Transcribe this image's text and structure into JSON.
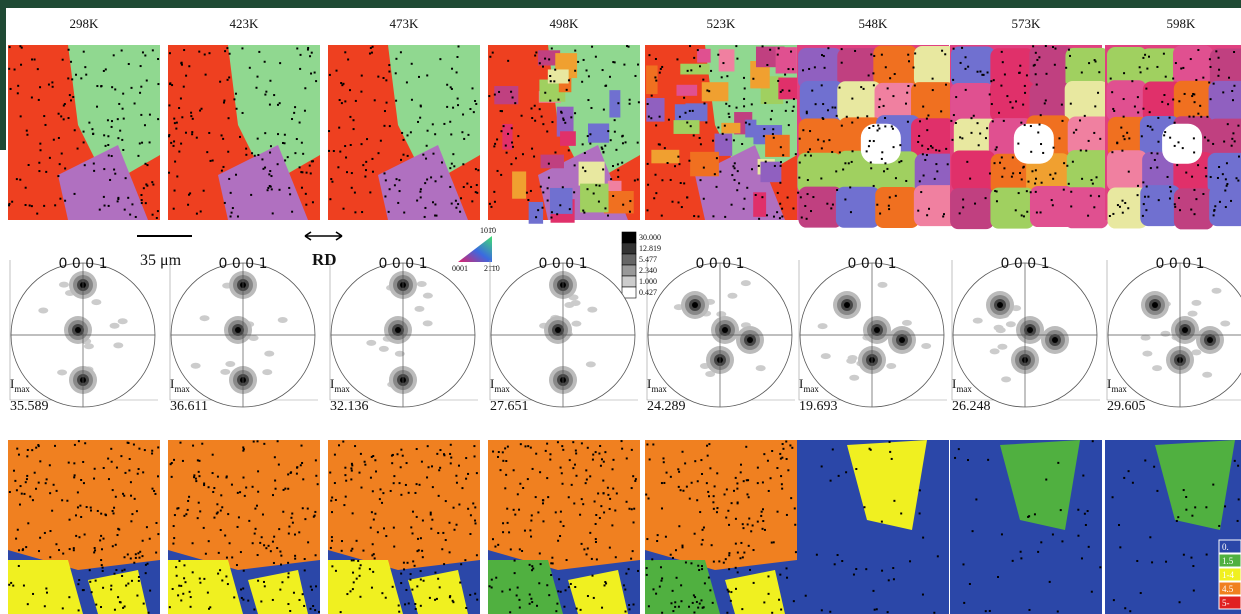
{
  "figure": {
    "temperatures": [
      "298K",
      "423K",
      "473K",
      "498K",
      "523K",
      "548K",
      "573K",
      "598K"
    ],
    "scale_bar": "35 μm",
    "direction": "RD",
    "ipf_key": {
      "top": "101̄0",
      "left": "0001",
      "right": "21̄1̄0"
    },
    "colorbar": [
      "30.000",
      "12.819",
      "5.477",
      "2.340",
      "1.000",
      "0.427"
    ],
    "pole_label": "0 0 0 1",
    "imax_symbol": "I",
    "imax_subscript": "max",
    "imax_values": [
      "35.589",
      "36.611",
      "32.136",
      "27.651",
      "24.289",
      "19.693",
      "26.248",
      "29.605"
    ],
    "deviation_legend": [
      "0.",
      "1.5",
      "1-4",
      "4.5",
      "5-"
    ]
  }
}
